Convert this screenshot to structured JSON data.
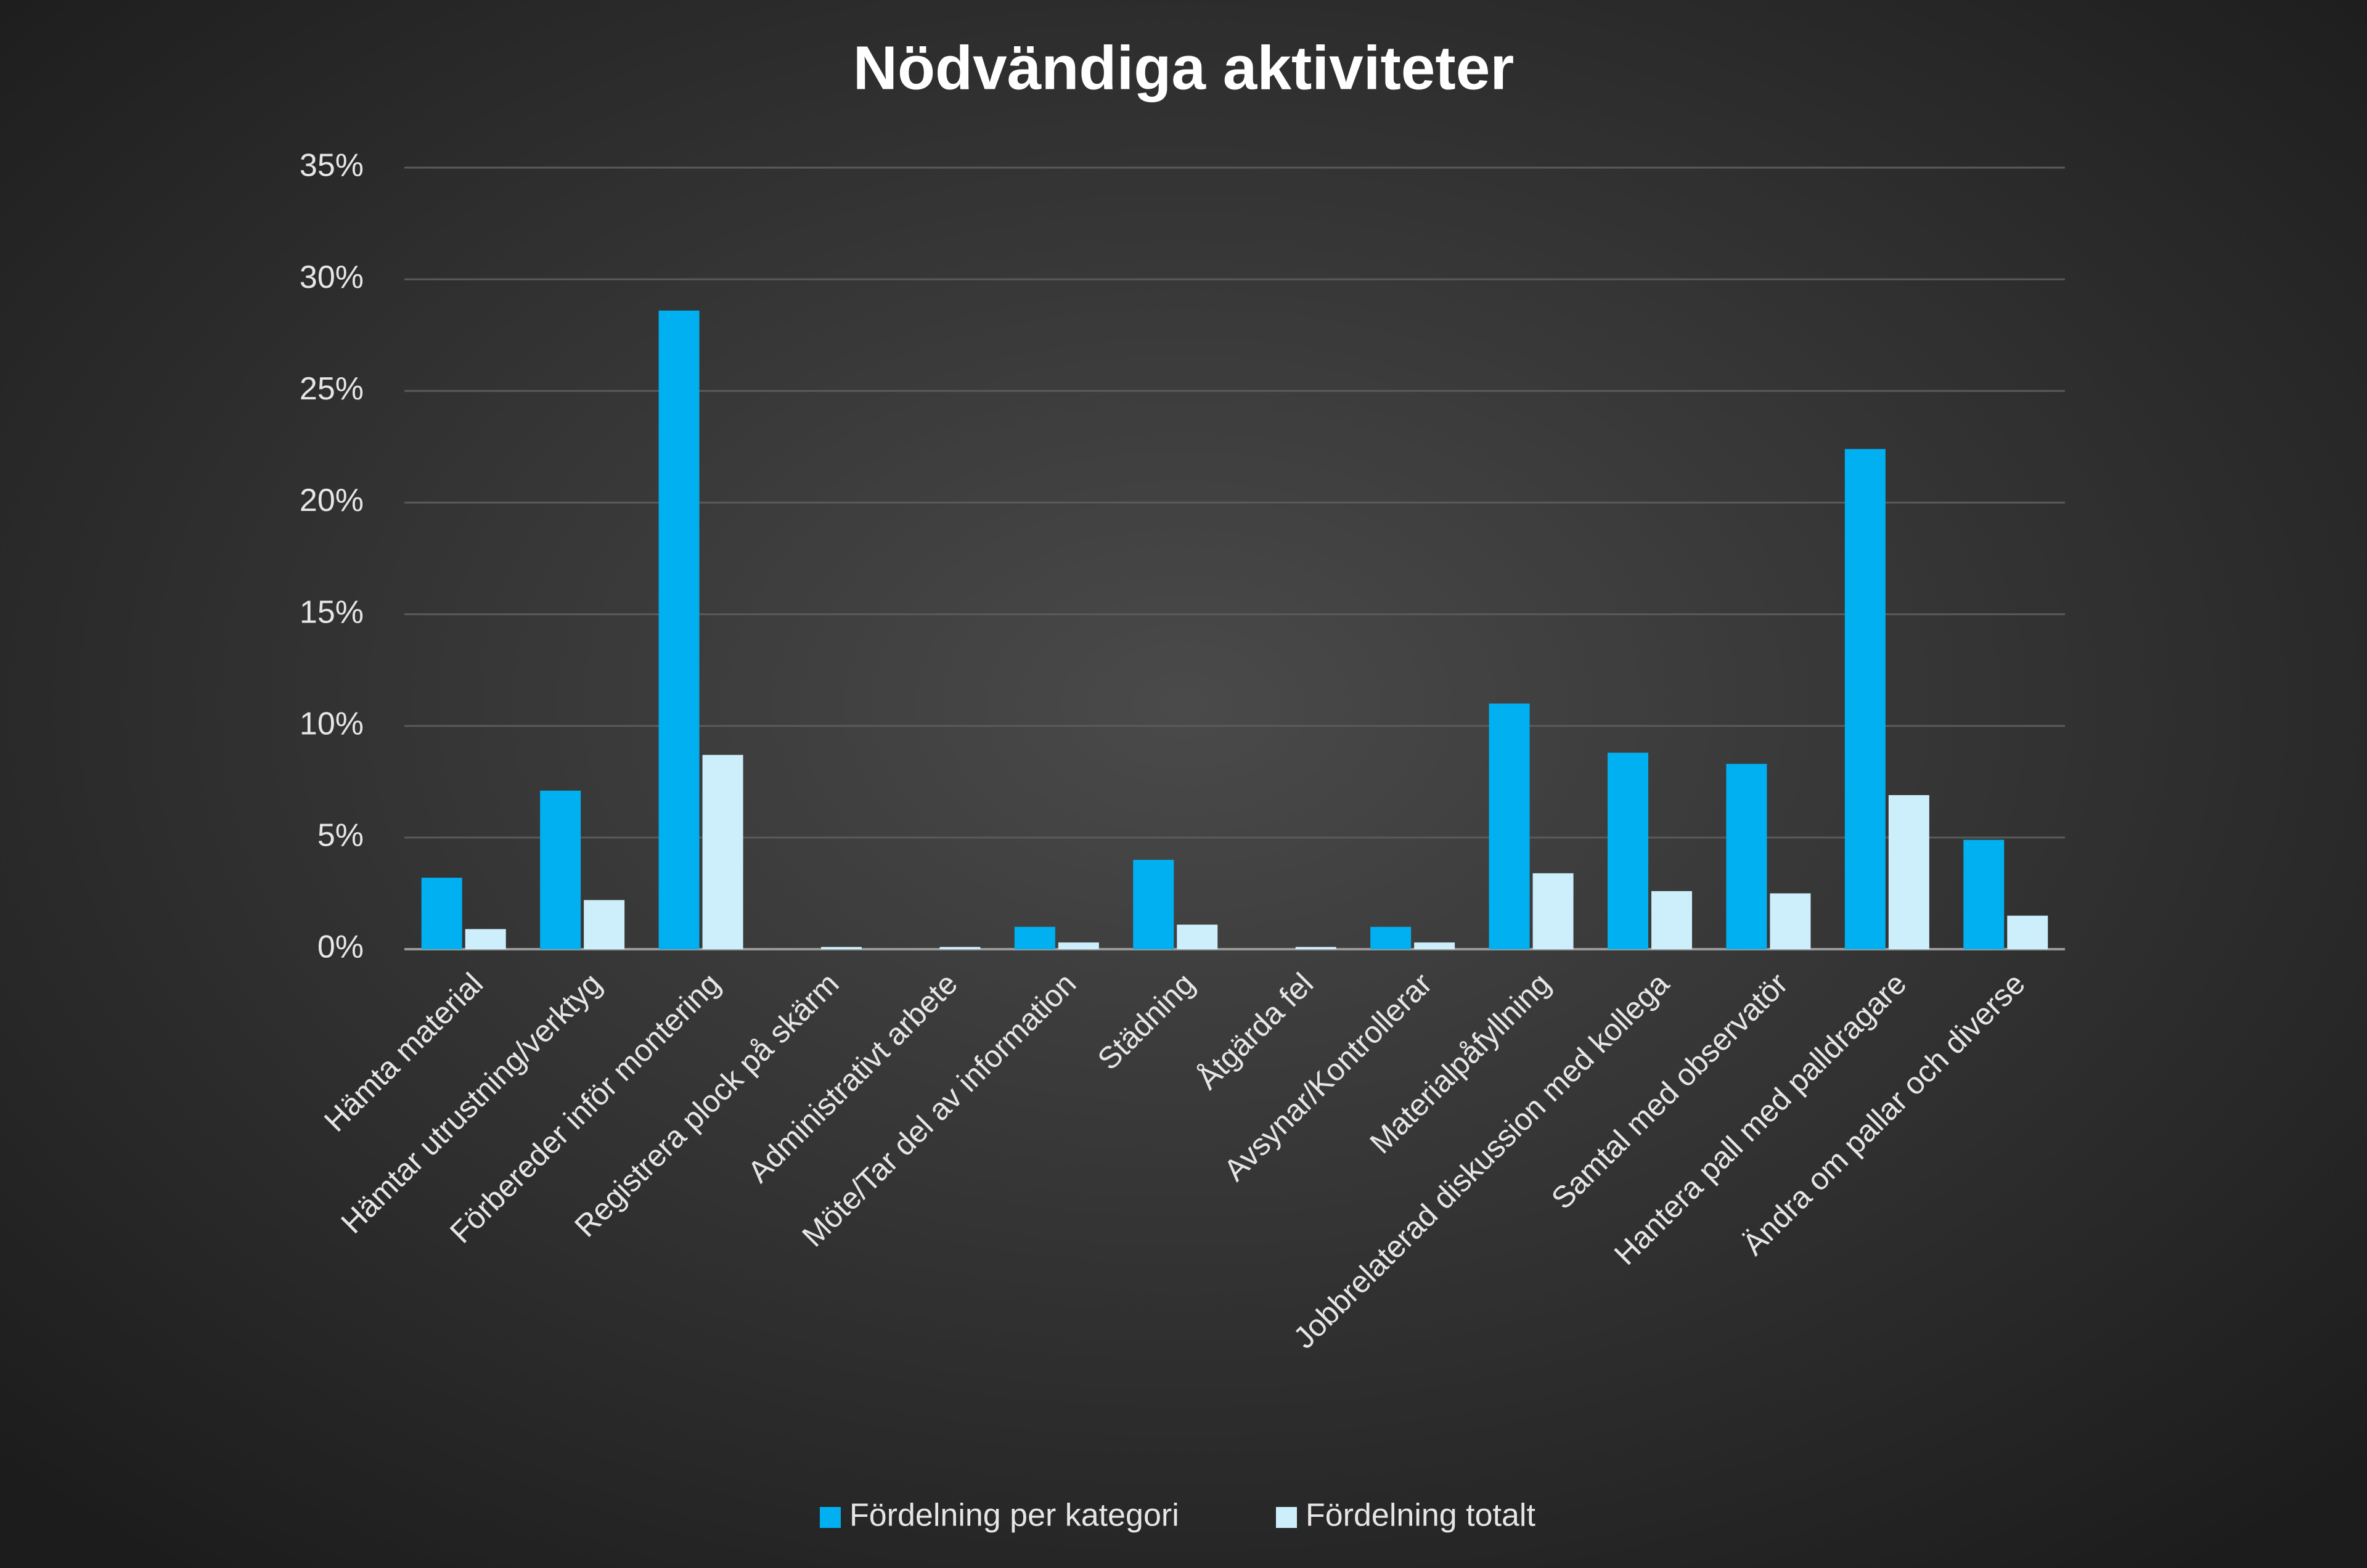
{
  "chart_data": {
    "type": "bar",
    "title": "Nödvändiga aktiviteter",
    "categories": [
      "Hämta material",
      "Hämtar utrustning/verktyg",
      "Förbereder inför montering",
      "Registrera plock på skärm",
      "Administrativt arbete",
      "Möte/Tar del av information",
      "Städning",
      "Åtgärda fel",
      "Avsynar/Kontrollerar",
      "Materialpåfyllning",
      "Jobbrelaterad diskussion med kollega",
      "Samtal med observatör",
      "Hantera pall med palldragare",
      "Ändra om pallar och diverse"
    ],
    "series": [
      {
        "name": "Fördelning per kategori",
        "color": "#00b0f0",
        "values": [
          3.2,
          7.1,
          28.6,
          0,
          0,
          1.0,
          4.0,
          0,
          1.0,
          11.0,
          8.8,
          8.3,
          22.4,
          4.9
        ]
      },
      {
        "name": "Fördelning totalt",
        "color": "#cdeffc",
        "values": [
          0.9,
          2.2,
          8.7,
          0.1,
          0.1,
          0.3,
          1.1,
          0.1,
          0.3,
          3.4,
          2.6,
          2.5,
          6.9,
          1.5
        ]
      }
    ],
    "ylim": [
      0,
      35
    ],
    "yticks": [
      {
        "value": 0,
        "label": "0%"
      },
      {
        "value": 5,
        "label": "5%"
      },
      {
        "value": 10,
        "label": "10%"
      },
      {
        "value": 15,
        "label": "15%"
      },
      {
        "value": 20,
        "label": "20%"
      },
      {
        "value": 25,
        "label": "25%"
      },
      {
        "value": 30,
        "label": "30%"
      },
      {
        "value": 35,
        "label": "35%"
      }
    ],
    "grid": true,
    "legend": "bottom"
  }
}
